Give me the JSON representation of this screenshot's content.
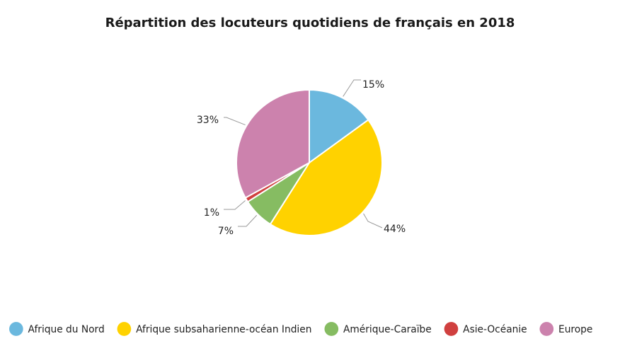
{
  "chart_data": {
    "type": "pie",
    "title": "Répartition des locuteurs quotidiens de français en 2018",
    "labels": [
      "Afrique du Nord",
      "Afrique subsaharienne-océan Indien",
      "Amérique-Caraïbe",
      "Asie-Océanie",
      "Europe"
    ],
    "values": [
      15,
      44,
      7,
      1,
      33
    ],
    "value_labels": [
      "15%",
      "44%",
      "7%",
      "1%",
      "33%"
    ],
    "colors": [
      "#6BB8DE",
      "#FFD200",
      "#86BC62",
      "#D0403F",
      "#CC82AD"
    ],
    "legend_placement": "bottom"
  }
}
